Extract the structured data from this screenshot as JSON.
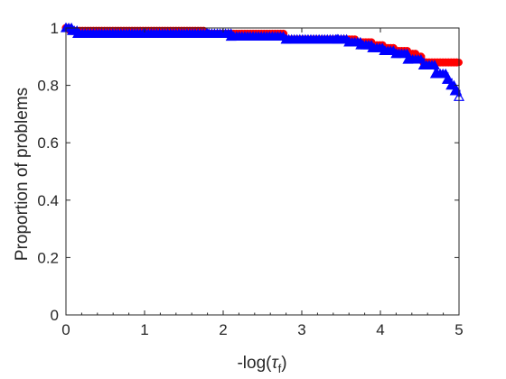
{
  "chart_data": {
    "type": "line",
    "title": "",
    "xlabel": "-log(τ_f)",
    "xlabel_main": "-log(",
    "xlabel_symbol": "τ",
    "xlabel_subscript": "f",
    "xlabel_close": ")",
    "ylabel": "Proportion of problems",
    "xlim": [
      0,
      5
    ],
    "ylim": [
      0,
      1
    ],
    "xticks": [
      0,
      1,
      2,
      3,
      4,
      5
    ],
    "yticks": [
      0,
      0.2,
      0.4,
      0.6,
      0.8,
      1
    ],
    "xtick_labels": [
      "0",
      "1",
      "2",
      "3",
      "4",
      "5"
    ],
    "ytick_labels": [
      "0",
      "0.2",
      "0.4",
      "0.6",
      "0.8",
      "1"
    ],
    "grid": false,
    "legend": "none",
    "series": [
      {
        "color": "#ff0000",
        "marker": "circle",
        "x": [
          0.0,
          0.05,
          1.55,
          1.75,
          2.8,
          3.7,
          3.9,
          4.05,
          4.2,
          4.35,
          4.45,
          4.55,
          5.0
        ],
        "y": [
          1.0,
          0.99,
          0.99,
          0.98,
          0.96,
          0.95,
          0.94,
          0.93,
          0.92,
          0.91,
          0.9,
          0.88,
          0.88
        ]
      },
      {
        "color": "#0000ff",
        "marker": "triangle",
        "x": [
          0.0,
          0.08,
          0.15,
          1.8,
          2.1,
          2.8,
          3.45,
          3.6,
          3.75,
          3.9,
          4.05,
          4.2,
          4.35,
          4.55,
          4.7,
          4.85,
          4.9,
          4.95,
          5.0
        ],
        "y": [
          1.0,
          0.99,
          0.98,
          0.98,
          0.97,
          0.96,
          0.96,
          0.95,
          0.94,
          0.93,
          0.92,
          0.91,
          0.89,
          0.87,
          0.84,
          0.82,
          0.8,
          0.78,
          0.76
        ]
      }
    ]
  }
}
